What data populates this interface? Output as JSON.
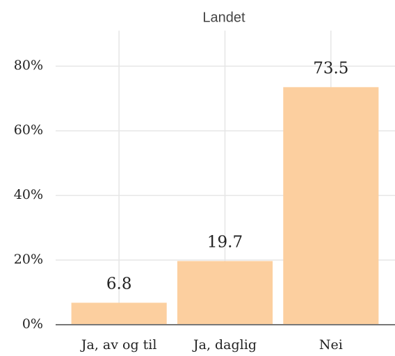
{
  "chart_data": {
    "type": "bar",
    "title": "Landet",
    "categories": [
      "Ja, av og til",
      "Ja, daglig",
      "Nei"
    ],
    "values": [
      6.8,
      19.7,
      73.5
    ],
    "color": "#fccf9f",
    "ylim": [
      0,
      91
    ],
    "yticks": [
      {
        "value": 0,
        "label": "0%"
      },
      {
        "value": 20,
        "label": "20%"
      },
      {
        "value": 40,
        "label": "40%"
      },
      {
        "value": 60,
        "label": "60%"
      },
      {
        "value": 80,
        "label": "80%"
      }
    ],
    "grid": true
  }
}
